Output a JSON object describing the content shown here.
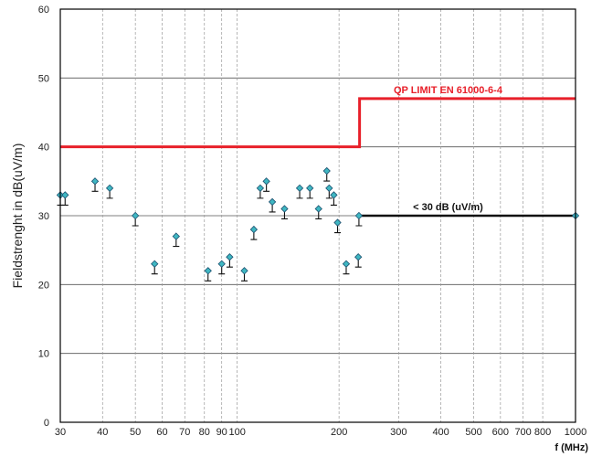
{
  "chart_data": {
    "type": "scatter",
    "title": "",
    "xlabel": "f (MHz)",
    "ylabel": "Fieldstrenght in dB(uV/m)",
    "x_scale": "log",
    "xlim": [
      30,
      1000
    ],
    "ylim": [
      0,
      60
    ],
    "grid": true,
    "x_ticks": [
      30,
      40,
      50,
      60,
      70,
      80,
      90,
      100,
      200,
      300,
      400,
      500,
      600,
      700,
      800,
      1000
    ],
    "x_tick_labels": [
      "30",
      "40",
      "50",
      "60",
      "70",
      "80",
      "90",
      "100",
      "200",
      "300",
      "400",
      "500",
      "600",
      "700",
      "800",
      "1000"
    ],
    "y_ticks": [
      0,
      10,
      20,
      30,
      40,
      50,
      60
    ],
    "y_tick_labels": [
      "0",
      "10",
      "20",
      "30",
      "40",
      "50",
      "60"
    ],
    "points": [
      {
        "x": 30,
        "y": 33
      },
      {
        "x": 31,
        "y": 33
      },
      {
        "x": 38,
        "y": 35
      },
      {
        "x": 42,
        "y": 34
      },
      {
        "x": 50,
        "y": 30
      },
      {
        "x": 57,
        "y": 23
      },
      {
        "x": 66,
        "y": 27
      },
      {
        "x": 82,
        "y": 22
      },
      {
        "x": 90,
        "y": 23
      },
      {
        "x": 95,
        "y": 24
      },
      {
        "x": 105,
        "y": 22
      },
      {
        "x": 112,
        "y": 28
      },
      {
        "x": 117,
        "y": 34
      },
      {
        "x": 122,
        "y": 35
      },
      {
        "x": 127,
        "y": 32
      },
      {
        "x": 138,
        "y": 31
      },
      {
        "x": 153,
        "y": 34
      },
      {
        "x": 164,
        "y": 34
      },
      {
        "x": 174,
        "y": 31
      },
      {
        "x": 184,
        "y": 36.5
      },
      {
        "x": 187,
        "y": 34
      },
      {
        "x": 193,
        "y": 33
      },
      {
        "x": 198,
        "y": 29
      },
      {
        "x": 210,
        "y": 23
      },
      {
        "x": 228,
        "y": 24
      },
      {
        "x": 229,
        "y": 30
      },
      {
        "x": 1000,
        "y": 30
      }
    ],
    "limit_lines": [
      {
        "name": "QP LIMIT  EN 61000-6-4",
        "color": "#e8202a",
        "segments": [
          {
            "x0": 30,
            "x1": 230,
            "y": 40
          },
          {
            "x0": 230,
            "x1": 1000,
            "y": 47
          }
        ]
      },
      {
        "name": "< 30 dB (uV/m)",
        "color": "#111111",
        "segments": [
          {
            "x0": 230,
            "x1": 1000,
            "y": 30
          }
        ]
      }
    ],
    "annotations": [
      {
        "text": "QP LIMIT  EN 61000-6-4",
        "x": 420,
        "y": 47,
        "color": "#e8202a"
      },
      {
        "text": "< 30 dB (uV/m)",
        "x": 420,
        "y": 30,
        "color": "#111111"
      }
    ],
    "colors": {
      "marker_fill": "#3fb7c2",
      "marker_stroke": "#1b4f6e",
      "limit": "#e8202a",
      "grid": "#999999"
    }
  }
}
